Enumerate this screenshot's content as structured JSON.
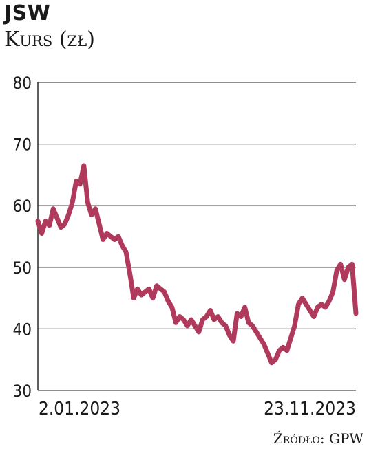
{
  "chart_data": {
    "type": "line",
    "title": "JSW",
    "subtitle": "Kurs (zł)",
    "source": "Źródło: GPW",
    "ylim": [
      30,
      80
    ],
    "yticks": [
      30,
      40,
      50,
      60,
      70,
      80
    ],
    "grid": true,
    "x_labels": [
      "2.01.2023",
      "23.11.2023"
    ],
    "series": [
      {
        "color": "#b03a5b",
        "values": [
          57.5,
          55.5,
          57.5,
          56.8,
          59.5,
          58.0,
          56.5,
          57.0,
          58.5,
          60.5,
          64.0,
          63.5,
          66.5,
          60.5,
          58.5,
          59.5,
          57.0,
          54.5,
          55.5,
          55.0,
          54.5,
          55.0,
          53.5,
          52.5,
          49.0,
          45.0,
          46.5,
          45.5,
          46.0,
          46.5,
          45.0,
          47.0,
          46.5,
          46.0,
          44.5,
          43.5,
          41.0,
          42.0,
          41.5,
          40.5,
          41.5,
          40.5,
          39.5,
          41.5,
          42.0,
          43.0,
          41.5,
          42.0,
          41.0,
          40.5,
          39.0,
          38.0,
          42.5,
          42.0,
          43.5,
          41.0,
          40.5,
          39.5,
          38.5,
          37.5,
          36.0,
          34.5,
          35.0,
          36.5,
          37.0,
          36.5,
          38.5,
          40.5,
          44.0,
          45.0,
          44.0,
          43.0,
          42.0,
          43.5,
          44.0,
          43.5,
          44.5,
          46.0,
          49.5,
          50.5,
          48.0,
          50.0,
          50.5,
          42.5
        ]
      }
    ]
  }
}
